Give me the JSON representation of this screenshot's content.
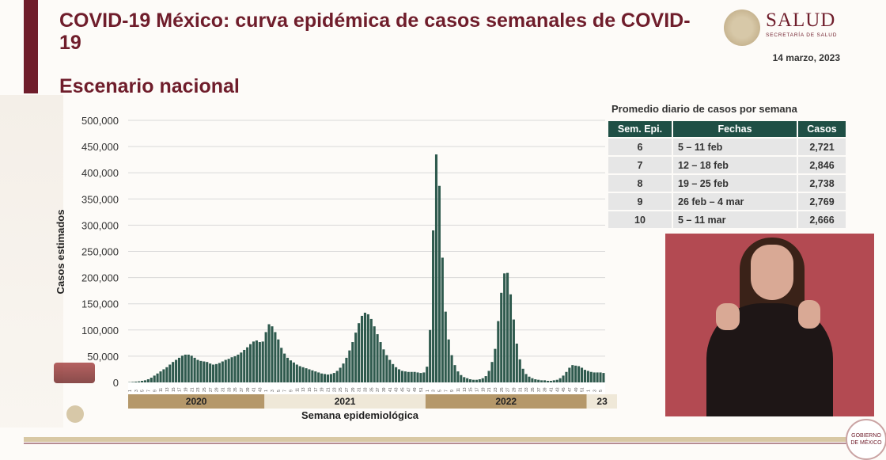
{
  "header": {
    "title": "COVID-19 México: curva epidémica de casos semanales de COVID-19",
    "subtitle": "Escenario nacional",
    "brand": "SALUD",
    "brand_sub": "SECRETARÍA DE SALUD",
    "date": "14 marzo, 2023"
  },
  "table": {
    "title": "Promedio diario de casos por semana",
    "headers": [
      "Sem. Epi.",
      "Fechas",
      "Casos"
    ],
    "rows": [
      [
        "6",
        "5 – 11 feb",
        "2,721"
      ],
      [
        "7",
        "12 – 18 feb",
        "2,846"
      ],
      [
        "8",
        "19 – 25 feb",
        "2,738"
      ],
      [
        "9",
        "26 feb – 4 mar",
        "2,769"
      ],
      [
        "10",
        "5 – 11 mar",
        "2,666"
      ]
    ]
  },
  "footer": {
    "gob_logo_text": "GOBIERNO DE MÉXICO"
  },
  "colors": {
    "brand": "#6f1d2b",
    "bar": "#2f5a4e",
    "year_band": "#b5986a",
    "year_band_alt": "#efe8d8",
    "table_header": "#1f4f45"
  },
  "chart_data": {
    "type": "bar",
    "xlabel": "Semana epidemiológica",
    "ylabel": "Casos estimados",
    "ylim": [
      0,
      500000
    ],
    "yticks": [
      "0",
      "50,000",
      "100,000",
      "150,000",
      "200,000",
      "250,000",
      "300,000",
      "350,000",
      "400,000",
      "450,000",
      "500,000"
    ],
    "grid": true,
    "years": [
      {
        "label": "2020",
        "weeks": 44
      },
      {
        "label": "2021",
        "weeks": 52
      },
      {
        "label": "2022",
        "weeks": 52
      },
      {
        "label": "23",
        "weeks": 10
      }
    ],
    "values": [
      500,
      1000,
      1500,
      2000,
      3000,
      4000,
      6000,
      9000,
      13000,
      17000,
      21000,
      25000,
      29000,
      34000,
      39000,
      43000,
      47000,
      51000,
      53000,
      53000,
      51000,
      47000,
      43000,
      41000,
      40000,
      39000,
      36000,
      34000,
      35000,
      37000,
      40000,
      43000,
      45000,
      48000,
      50000,
      53000,
      57000,
      62000,
      67000,
      73000,
      78000,
      80000,
      77000,
      78000,
      96000,
      111000,
      107000,
      96000,
      82000,
      66000,
      55000,
      47000,
      42000,
      38000,
      34000,
      31000,
      29000,
      27000,
      25000,
      23000,
      21000,
      19000,
      17000,
      16000,
      15000,
      16000,
      18000,
      22000,
      28000,
      36000,
      47000,
      61000,
      77000,
      95000,
      113000,
      127000,
      133000,
      130000,
      121000,
      107000,
      92000,
      77000,
      63000,
      52000,
      43000,
      35000,
      29000,
      25000,
      22000,
      21000,
      20000,
      20000,
      20000,
      19000,
      18000,
      19000,
      30000,
      100000,
      290000,
      435000,
      375000,
      238000,
      135000,
      82000,
      52000,
      33000,
      21000,
      14000,
      10000,
      8000,
      6000,
      5000,
      5000,
      6000,
      8000,
      12000,
      22000,
      39000,
      64000,
      117000,
      171000,
      208000,
      209000,
      168000,
      120000,
      74000,
      44000,
      26000,
      16000,
      11000,
      8000,
      6000,
      5000,
      4000,
      4000,
      3000,
      3000,
      4000,
      5000,
      8000,
      13000,
      20000,
      28000,
      33000,
      32000,
      31000,
      28000,
      24000,
      22000,
      20000,
      19000,
      19000,
      19000,
      18000
    ]
  }
}
